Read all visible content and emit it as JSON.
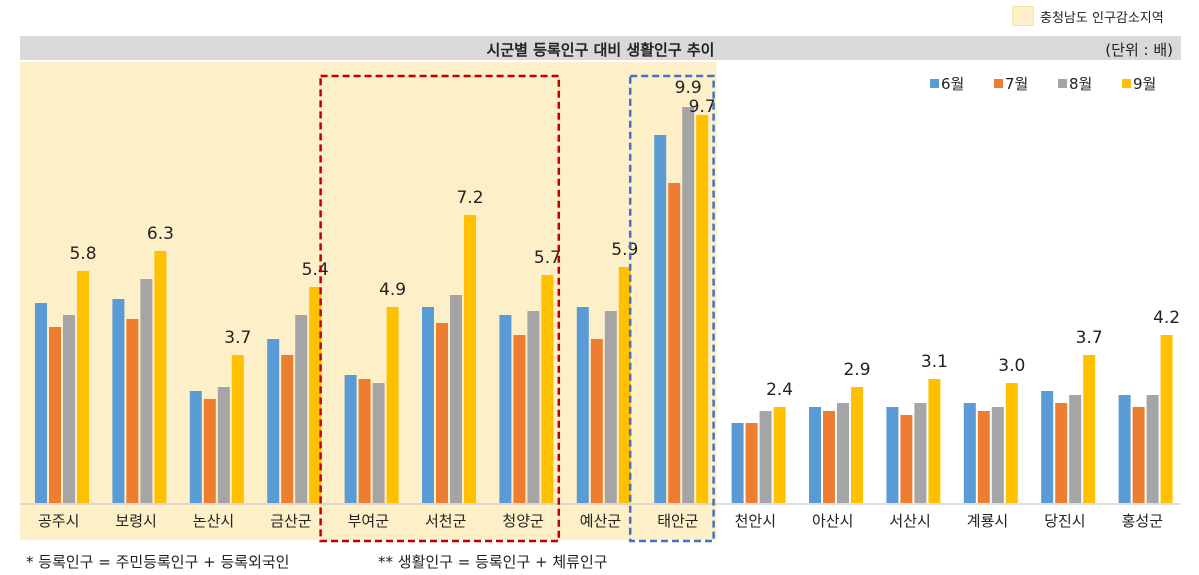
{
  "header": {
    "legend_note": "충청남도 인구감소지역",
    "title": "시군별 등록인구 대비 생활인구 추이",
    "unit": "(단위 : 배)"
  },
  "footnotes": {
    "registered": "* 등록인구 = 주민등록인구 + 등록외국인",
    "living": "** 생활인구 = 등록인구 + 체류인구"
  },
  "colors": {
    "highlight_bg": "#fdf0c9",
    "red_box": "#c00000",
    "blue_box": "#4472c4"
  },
  "chart_data": {
    "type": "bar",
    "categories": [
      "공주시",
      "보령시",
      "논산시",
      "금산군",
      "부여군",
      "서천군",
      "청양군",
      "예산군",
      "태안군",
      "천안시",
      "아산시",
      "서산시",
      "계룡시",
      "당진시",
      "홍성군"
    ],
    "series": [
      {
        "name": "6월",
        "color": "#5b9bd5",
        "values": [
          5.0,
          5.1,
          2.8,
          4.1,
          3.2,
          4.9,
          4.7,
          4.9,
          9.2,
          2.0,
          2.4,
          2.4,
          2.5,
          2.8,
          2.7
        ]
      },
      {
        "name": "7월",
        "color": "#ed7d31",
        "values": [
          4.4,
          4.6,
          2.6,
          3.7,
          3.1,
          4.5,
          4.2,
          4.1,
          8.0,
          2.0,
          2.3,
          2.2,
          2.3,
          2.5,
          2.4
        ]
      },
      {
        "name": "8월",
        "color": "#a5a5a5",
        "values": [
          4.7,
          5.6,
          2.9,
          4.7,
          3.0,
          5.2,
          4.8,
          4.8,
          9.9,
          2.3,
          2.5,
          2.5,
          2.4,
          2.7,
          2.7
        ]
      },
      {
        "name": "9월",
        "color": "#ffc000",
        "values": [
          5.8,
          6.3,
          3.7,
          5.4,
          4.9,
          7.2,
          5.7,
          5.9,
          9.7,
          2.4,
          2.9,
          3.1,
          3.0,
          3.7,
          4.2
        ]
      }
    ],
    "data_labels": [
      {
        "category": "공주시",
        "text": "5.8"
      },
      {
        "category": "보령시",
        "text": "6.3"
      },
      {
        "category": "논산시",
        "text": "3.7"
      },
      {
        "category": "금산군",
        "text": "5.4"
      },
      {
        "category": "부여군",
        "text": "4.9"
      },
      {
        "category": "서천군",
        "text": "7.2"
      },
      {
        "category": "청양군",
        "text": "5.7"
      },
      {
        "category": "예산군",
        "text": "5.9"
      },
      {
        "category": "태안군",
        "text": "9.9"
      },
      {
        "category": "태안군",
        "text": "9.7"
      },
      {
        "category": "천안시",
        "text": "2.4"
      },
      {
        "category": "아산시",
        "text": "2.9"
      },
      {
        "category": "서산시",
        "text": "3.1"
      },
      {
        "category": "계룡시",
        "text": "3.0"
      },
      {
        "category": "당진시",
        "text": "3.7"
      },
      {
        "category": "홍성군",
        "text": "4.2"
      }
    ],
    "ylim": [
      0,
      11.5
    ],
    "grid": false,
    "legend_position": "top-right",
    "highlighted_categories": [
      "공주시",
      "보령시",
      "논산시",
      "금산군",
      "부여군",
      "서천군",
      "청양군",
      "예산군",
      "태안군"
    ],
    "red_box_categories": [
      "부여군",
      "서천군",
      "청양군"
    ],
    "blue_box_categories": [
      "태안군"
    ]
  }
}
